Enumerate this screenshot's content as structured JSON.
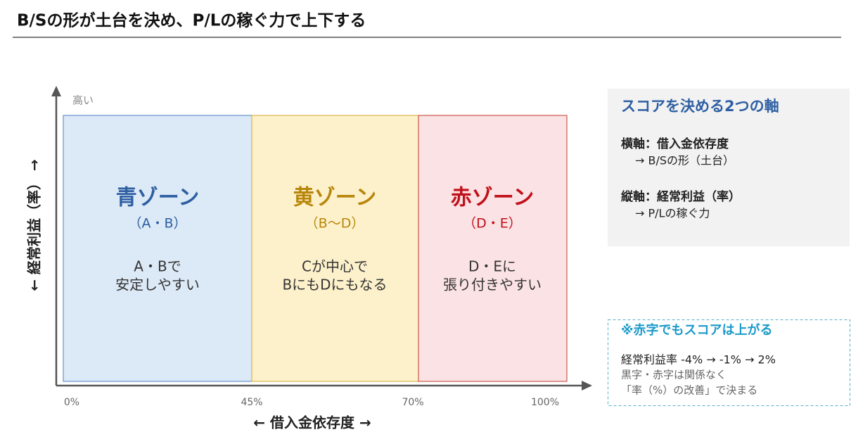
{
  "header": {
    "title": "B/Sの形が土台を決め、P/Lの稼ぐ力で上下する"
  },
  "diagram": {
    "y_axis_label": "← 経常利益（率） →",
    "y_axis_top": "高い",
    "x_axis_label": "← 借入金依存度 →",
    "x_ticks": [
      "0%",
      "45%",
      "70%",
      "100%"
    ],
    "zones": [
      {
        "name": "青ゾーン",
        "grades": "（A・B）",
        "desc": [
          "A・Bで",
          "安定しやすい"
        ]
      },
      {
        "name": "黄ゾーン",
        "grades": "（B〜D）",
        "desc": [
          "Cが中心で",
          "BにもDにもなる"
        ]
      },
      {
        "name": "赤ゾーン",
        "grades": "（D・E）",
        "desc": [
          "D・Eに",
          "張り付きやすい"
        ]
      }
    ]
  },
  "axes_panel": {
    "title": "スコアを決める2つの軸",
    "items": [
      {
        "label": "横軸：借入金依存度",
        "detail": "→ B/Sの形（土台）"
      },
      {
        "label": "縦軸：経常利益（率）",
        "detail": "→ P/Lの稼ぐ力"
      }
    ]
  },
  "note_panel": {
    "title": "※赤字でもスコアは上がる",
    "lines": [
      "経常利益率  -4% → -1% → 2%",
      "黒字・赤字は関係なく",
      "「率（%）の改善」で決まる"
    ]
  }
}
